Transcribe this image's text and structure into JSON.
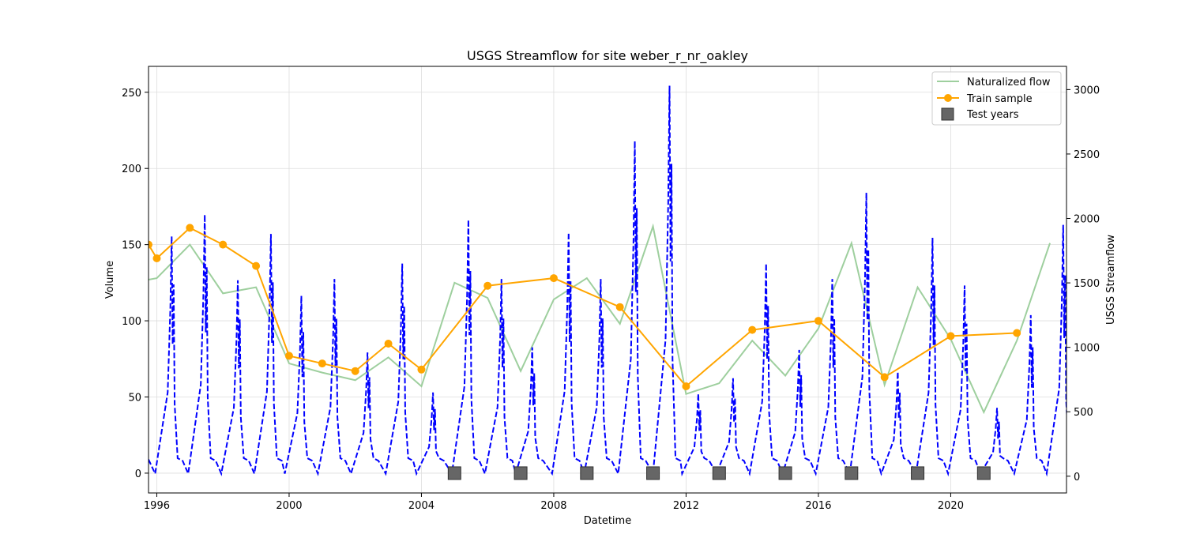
{
  "chart_data": {
    "type": "line",
    "title": "USGS Streamflow for site weber_r_nr_oakley",
    "xlabel": "Datetime",
    "ylabel": "Volume",
    "y2label": "USGS Streamflow",
    "xlim": [
      1995.75,
      2023.5
    ],
    "ylim": [
      -13,
      267
    ],
    "y2lim": [
      -130,
      3180
    ],
    "xticks": [
      1996,
      2000,
      2004,
      2008,
      2012,
      2016,
      2020
    ],
    "yticks": [
      0,
      50,
      100,
      150,
      200,
      250
    ],
    "y2ticks": [
      0,
      500,
      1000,
      1500,
      2000,
      2500,
      3000
    ],
    "grid": true,
    "legend_position": "top-right",
    "legend": [
      "Naturalized flow",
      "Train sample",
      "Test years"
    ],
    "colors": {
      "naturalized": "#9ecf9e",
      "train": "#ffa500",
      "streamflow": "#0000ff",
      "test": "#666666"
    },
    "series": [
      {
        "name": "Naturalized flow",
        "x": [
          1995.75,
          1996,
          1997,
          1998,
          1999,
          2000,
          2001,
          2002,
          2003,
          2004,
          2005,
          2006,
          2007,
          2008,
          2009,
          2010,
          2011,
          2012,
          2013,
          2014,
          2015,
          2016,
          2017,
          2018,
          2019,
          2020,
          2021,
          2022,
          2023
        ],
        "y": [
          127,
          128,
          150,
          118,
          122,
          72,
          66,
          61,
          76,
          57,
          125,
          115,
          67,
          114,
          128,
          98,
          162,
          52,
          59,
          87,
          64,
          95,
          151,
          58,
          122,
          88,
          40,
          87,
          151
        ]
      },
      {
        "name": "Train sample",
        "x": [
          1995.75,
          1996,
          1997,
          1998,
          1999,
          2000,
          2001,
          2002,
          2003,
          2004,
          2006,
          2008,
          2010,
          2012,
          2014,
          2016,
          2018,
          2020,
          2022
        ],
        "y": [
          150,
          141,
          161,
          150,
          136,
          77,
          72,
          67,
          85,
          68,
          123,
          128,
          109,
          57,
          94,
          100,
          63,
          90,
          92
        ]
      },
      {
        "name": "Test years",
        "x": [
          2005,
          2007,
          2009,
          2011,
          2013,
          2015,
          2017,
          2019,
          2021
        ],
        "y": [
          0,
          0,
          0,
          0,
          0,
          0,
          0,
          0,
          0
        ]
      }
    ],
    "streamflow": {
      "axis": "right",
      "peaks": [
        {
          "x": 1996.45,
          "y": 1860
        },
        {
          "x": 1997.45,
          "y": 2030
        },
        {
          "x": 1998.45,
          "y": 1520
        },
        {
          "x": 1999.45,
          "y": 1880
        },
        {
          "x": 2000.37,
          "y": 1400
        },
        {
          "x": 2001.37,
          "y": 1530
        },
        {
          "x": 2002.37,
          "y": 960
        },
        {
          "x": 2003.42,
          "y": 1650
        },
        {
          "x": 2004.35,
          "y": 650
        },
        {
          "x": 2005.42,
          "y": 1990
        },
        {
          "x": 2006.42,
          "y": 1530
        },
        {
          "x": 2007.35,
          "y": 1000
        },
        {
          "x": 2008.45,
          "y": 1890
        },
        {
          "x": 2009.42,
          "y": 1530
        },
        {
          "x": 2010.45,
          "y": 2600
        },
        {
          "x": 2011.5,
          "y": 3030
        },
        {
          "x": 2012.37,
          "y": 640
        },
        {
          "x": 2013.42,
          "y": 760
        },
        {
          "x": 2014.42,
          "y": 1650
        },
        {
          "x": 2015.42,
          "y": 980
        },
        {
          "x": 2016.42,
          "y": 1530
        },
        {
          "x": 2017.45,
          "y": 2200
        },
        {
          "x": 2018.4,
          "y": 810
        },
        {
          "x": 2019.45,
          "y": 1850
        },
        {
          "x": 2020.42,
          "y": 1480
        },
        {
          "x": 2021.4,
          "y": 530
        },
        {
          "x": 2022.42,
          "y": 1250
        },
        {
          "x": 2023.4,
          "y": 1950
        }
      ],
      "baseline": 50
    }
  }
}
